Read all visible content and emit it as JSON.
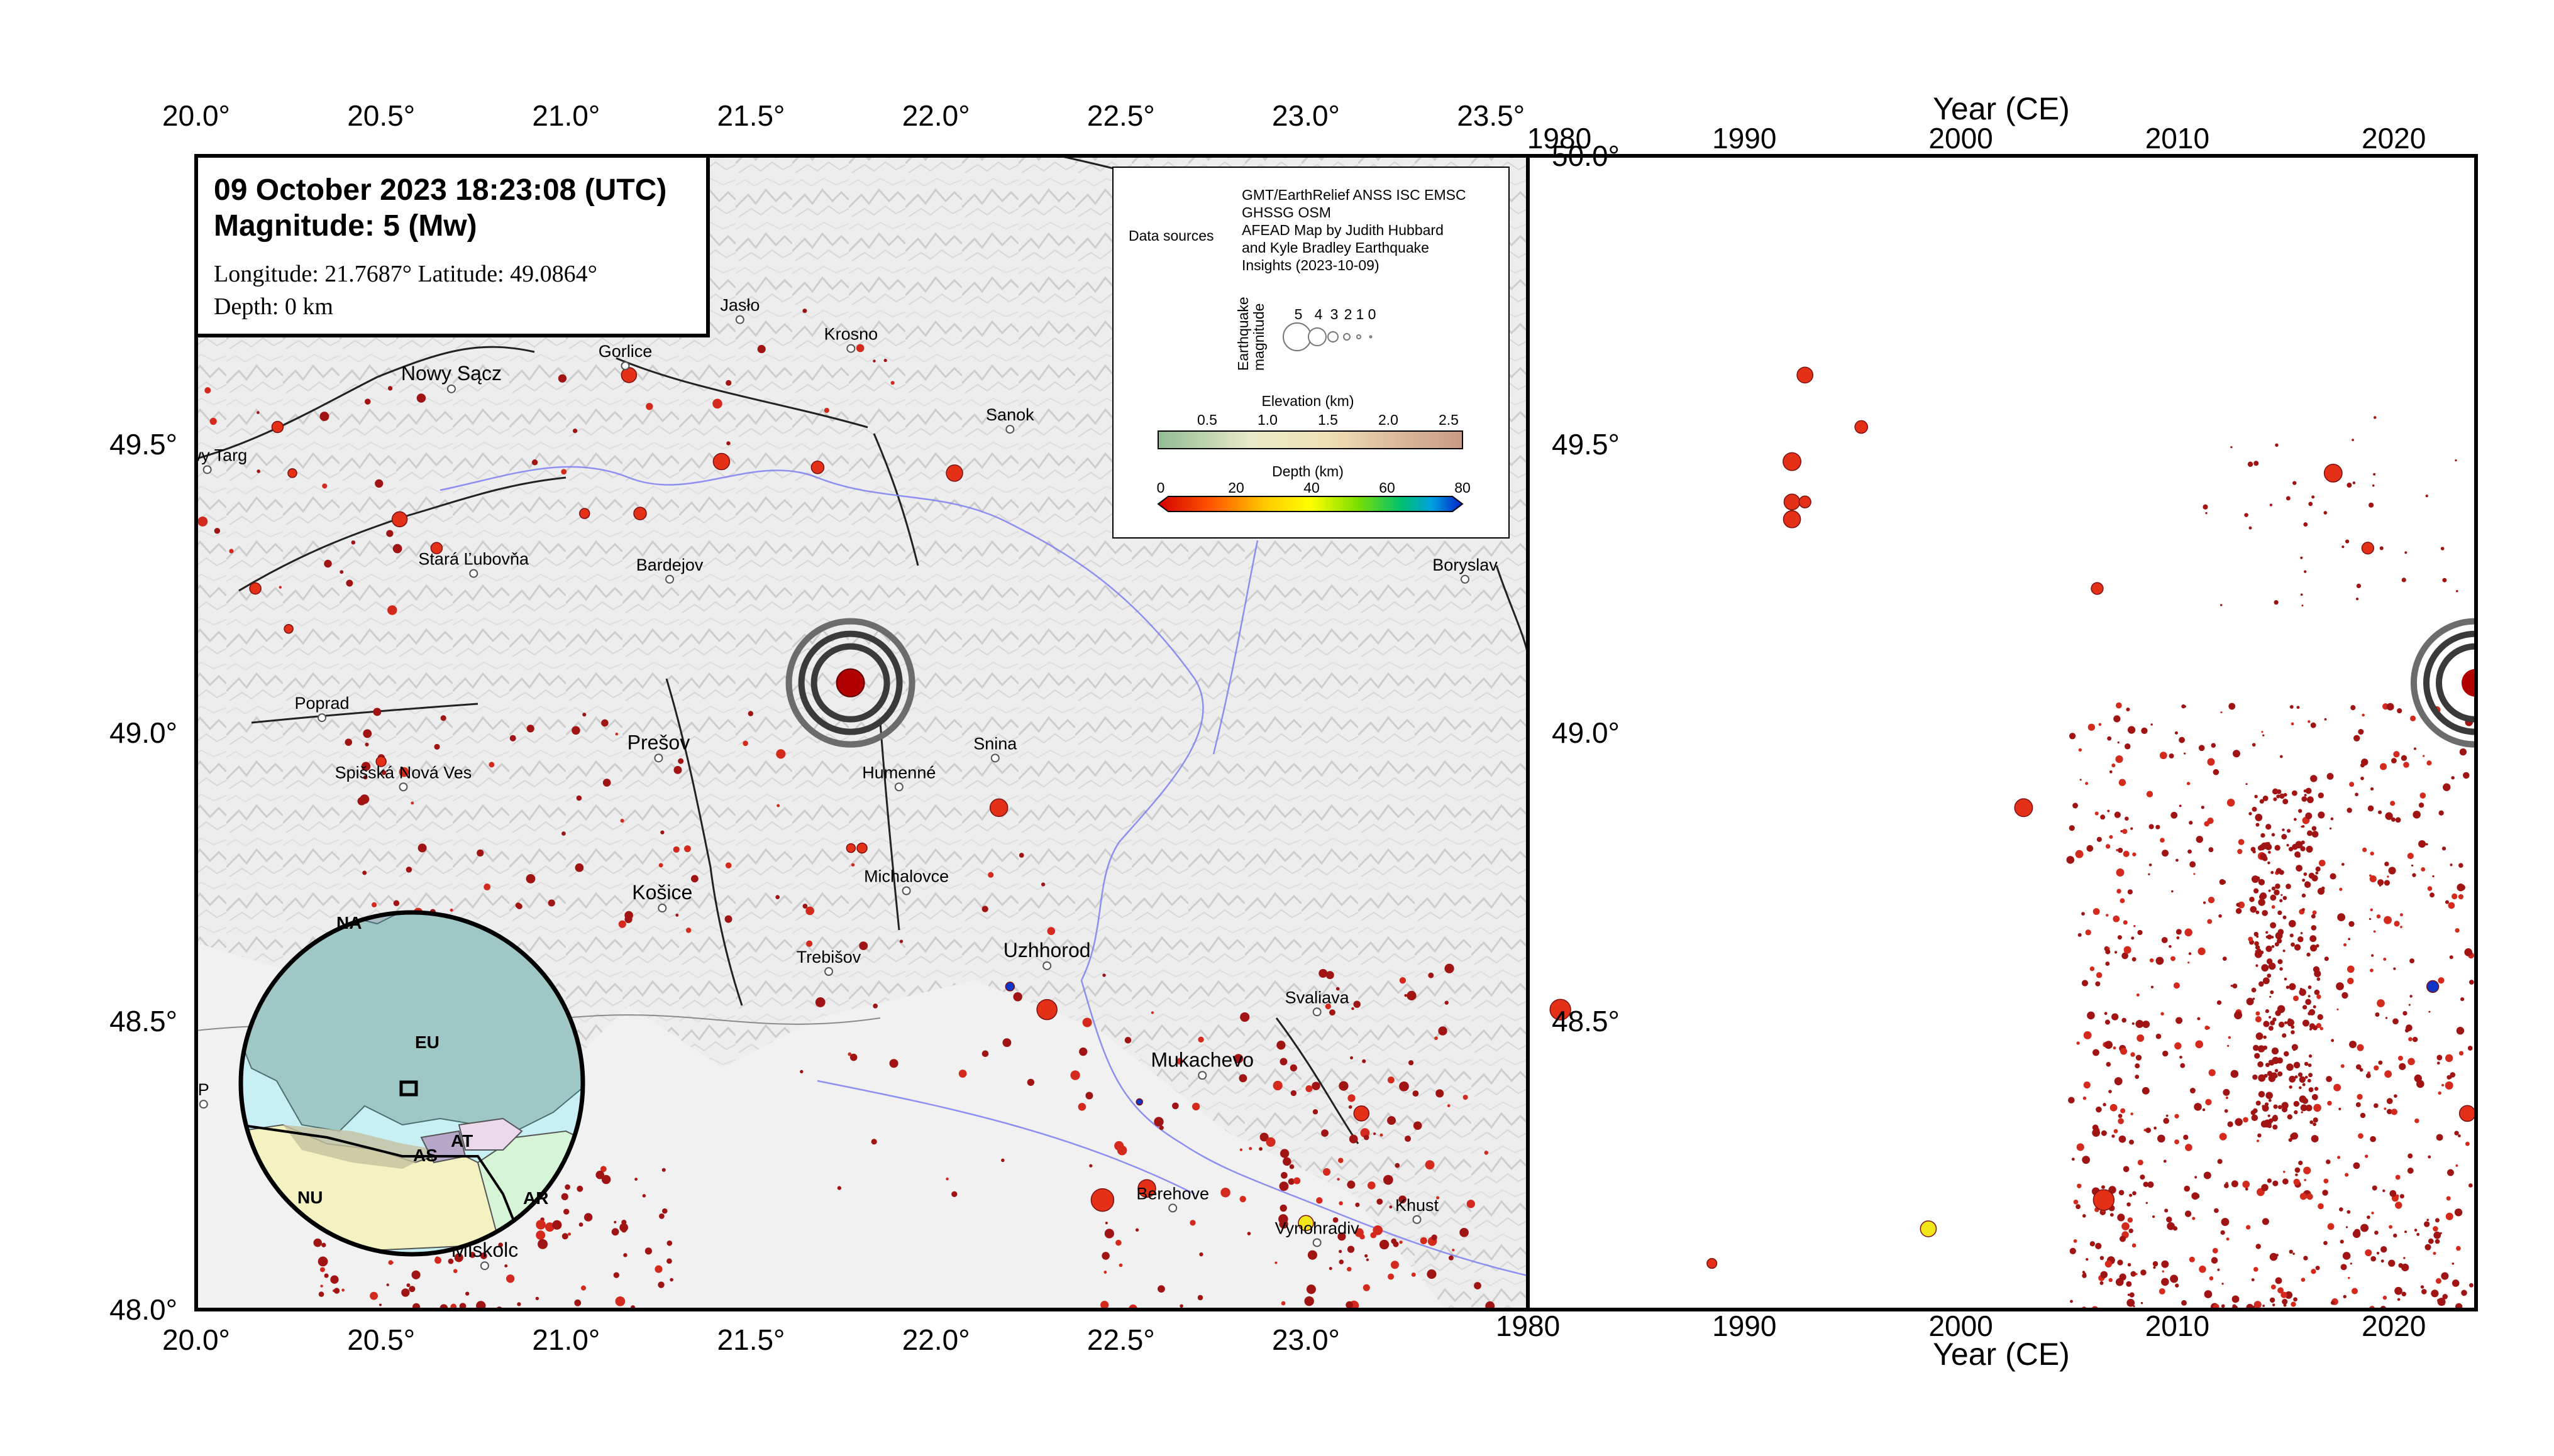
{
  "info_box": {
    "title_line": "09 October 2023 18:23:08 (UTC)",
    "magnitude_line": "Magnitude: 5 (Mw)",
    "location_line": "Longitude: 21.7687°  Latitude: 49.0864°",
    "depth_line": "Depth: 0 km"
  },
  "map_panel": {
    "lon_ticks": [
      "20.0°",
      "20.5°",
      "21.0°",
      "21.5°",
      "22.0°",
      "22.5°",
      "23.0°",
      "23.5°"
    ],
    "lat_ticks": [
      "48.0°",
      "48.5°",
      "49.0°",
      "49.5°"
    ],
    "extent": {
      "lon": [
        20.0,
        23.6
      ],
      "lat": [
        48.0,
        50.0
      ]
    },
    "mainshock": {
      "lon": 21.7687,
      "lat": 49.0864,
      "magnitude": 5,
      "depth_km": 0
    },
    "cities": [
      {
        "name": "Jasło",
        "lon": 21.47,
        "lat": 49.74,
        "size": "small"
      },
      {
        "name": "Krosno",
        "lon": 21.77,
        "lat": 49.69,
        "size": "small"
      },
      {
        "name": "Gorlice",
        "lon": 21.16,
        "lat": 49.66,
        "size": "small"
      },
      {
        "name": "Nowy Sącz",
        "lon": 20.69,
        "lat": 49.62,
        "size": "big"
      },
      {
        "name": "Sanok",
        "lon": 22.2,
        "lat": 49.55,
        "size": "small"
      },
      {
        "name": "Nowy Targ",
        "lon": 20.03,
        "lat": 49.48,
        "size": "small"
      },
      {
        "name": "Stará Ľubovňa",
        "lon": 20.75,
        "lat": 49.3,
        "size": "small"
      },
      {
        "name": "Bardejov",
        "lon": 21.28,
        "lat": 49.29,
        "size": "small"
      },
      {
        "name": "Boryslav",
        "lon": 23.43,
        "lat": 49.29,
        "size": "small"
      },
      {
        "name": "Poprad",
        "lon": 20.34,
        "lat": 49.05,
        "size": "small"
      },
      {
        "name": "Prešov",
        "lon": 21.25,
        "lat": 48.98,
        "size": "big"
      },
      {
        "name": "Snina",
        "lon": 22.16,
        "lat": 48.98,
        "size": "small"
      },
      {
        "name": "Humenné",
        "lon": 21.9,
        "lat": 48.93,
        "size": "small"
      },
      {
        "name": "Spišská Nová Ves",
        "lon": 20.56,
        "lat": 48.93,
        "size": "small"
      },
      {
        "name": "Michalovce",
        "lon": 21.92,
        "lat": 48.75,
        "size": "small"
      },
      {
        "name": "Košice",
        "lon": 21.26,
        "lat": 48.72,
        "size": "big"
      },
      {
        "name": "Uzhhorod",
        "lon": 22.3,
        "lat": 48.62,
        "size": "big"
      },
      {
        "name": "Trebišov",
        "lon": 21.71,
        "lat": 48.61,
        "size": "small"
      },
      {
        "name": "Svaliava",
        "lon": 23.03,
        "lat": 48.54,
        "size": "small"
      },
      {
        "name": "Mukachevo",
        "lon": 22.72,
        "lat": 48.43,
        "size": "big"
      },
      {
        "name": "Berehove",
        "lon": 22.64,
        "lat": 48.2,
        "size": "small"
      },
      {
        "name": "Khust",
        "lon": 23.3,
        "lat": 48.18,
        "size": "small"
      },
      {
        "name": "Vynohradiv",
        "lon": 23.03,
        "lat": 48.14,
        "size": "small"
      },
      {
        "name": "Miskolc",
        "lon": 20.78,
        "lat": 48.1,
        "size": "big"
      },
      {
        "name": "P",
        "lon": 20.02,
        "lat": 48.38,
        "size": "small"
      }
    ]
  },
  "inset_globe": {
    "plates": [
      "NA",
      "EU",
      "AT",
      "AS",
      "NU",
      "AR"
    ]
  },
  "legend": {
    "data_sources_label": "Data sources",
    "data_sources_lines": [
      "GMT/EarthRelief ANSS ISC EMSC",
      "GHSSG OSM",
      "AFEAD Map by Judith Hubbard",
      "and Kyle Bradley Earthquake",
      "Insights (2023-10-09)"
    ],
    "magnitude_label_lines": [
      "Earthquake",
      "magnitude"
    ],
    "magnitude_values": [
      "5",
      "4",
      "3",
      "2",
      "1",
      "0"
    ],
    "elevation_title": "Elevation (km)",
    "elevation_ticks": [
      "0.5",
      "1.0",
      "1.5",
      "2.0",
      "2.5"
    ],
    "depth_title": "Depth (km)",
    "depth_ticks": [
      "0",
      "20",
      "40",
      "60",
      "80"
    ]
  },
  "time_panel": {
    "top_axis_title": "Year (CE)",
    "bottom_axis_title": "Year (CE)",
    "year_ticks": [
      "1980",
      "1990",
      "2000",
      "2010",
      "2020"
    ],
    "lat_ticks": [
      "48.5°",
      "49.0°",
      "49.5°",
      "50.0°"
    ],
    "x_range": [
      1980,
      2023.8
    ],
    "y_range": [
      48.0,
      50.0
    ]
  },
  "chart_data": {
    "type": "scatter",
    "title": "",
    "xlabel": "Year (CE)",
    "ylabel": "",
    "xlim": [
      1980,
      2023.8
    ],
    "ylim": [
      48.0,
      50.0
    ],
    "notable_events": [
      {
        "year": 1981.5,
        "lat": 48.52,
        "mag": 4.2,
        "depth_km": 10
      },
      {
        "year": 1988.5,
        "lat": 48.08,
        "mag": 1.5,
        "depth_km": 5
      },
      {
        "year": 1992.2,
        "lat": 49.47,
        "mag": 3.5,
        "depth_km": 5
      },
      {
        "year": 1992.2,
        "lat": 49.4,
        "mag": 3.0,
        "depth_km": 5
      },
      {
        "year": 1992.2,
        "lat": 49.37,
        "mag": 3.3,
        "depth_km": 5
      },
      {
        "year": 1992.8,
        "lat": 49.62,
        "mag": 3.0,
        "depth_km": 5
      },
      {
        "year": 1992.8,
        "lat": 49.4,
        "mag": 2.0,
        "depth_km": 5
      },
      {
        "year": 1995.4,
        "lat": 49.53,
        "mag": 2.2,
        "depth_km": 5
      },
      {
        "year": 1998.5,
        "lat": 48.14,
        "mag": 3.0,
        "depth_km": 35
      },
      {
        "year": 2002.9,
        "lat": 48.87,
        "mag": 3.5,
        "depth_km": 8
      },
      {
        "year": 2006.3,
        "lat": 49.25,
        "mag": 2.0,
        "depth_km": 5
      },
      {
        "year": 2006.6,
        "lat": 48.19,
        "mag": 4.2,
        "depth_km": 8
      },
      {
        "year": 2017.2,
        "lat": 49.45,
        "mag": 3.5,
        "depth_km": 8
      },
      {
        "year": 2018.8,
        "lat": 49.32,
        "mag": 2.0,
        "depth_km": 8
      },
      {
        "year": 2021.8,
        "lat": 48.56,
        "mag": 2.0,
        "depth_km": 75
      },
      {
        "year": 2023.4,
        "lat": 48.34,
        "mag": 3.0,
        "depth_km": 8
      },
      {
        "year": 2023.77,
        "lat": 49.0864,
        "mag": 5.0,
        "depth_km": 0
      }
    ]
  },
  "colors": {
    "event_red": "#d42a1e",
    "event_darkred": "#a01414",
    "deep_event_blue": "#1034c8",
    "yellow_event": "#f2e619",
    "globe_ocean": "#c8f0f4",
    "globe_eu": "#9fc7c6",
    "globe_nu": "#f4f2c0",
    "globe_ar": "#d6f5d6",
    "globe_at": "#ecd9ec",
    "globe_as": "#b7a8c9"
  }
}
